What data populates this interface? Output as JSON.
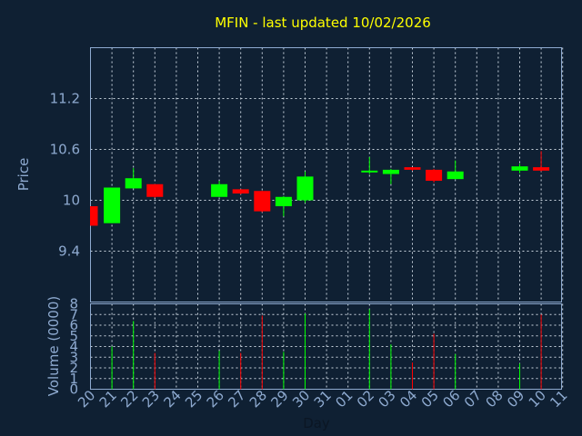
{
  "chart_data": {
    "type": "candlestick",
    "title": "MFIN - last updated 10/02/2026",
    "xlabel": "Day",
    "x_ticks": [
      "20",
      "21",
      "22",
      "23",
      "24",
      "25",
      "26",
      "27",
      "28",
      "29",
      "30",
      "31",
      "01",
      "02",
      "03",
      "04",
      "05",
      "06",
      "07",
      "08",
      "09",
      "10",
      "11"
    ],
    "price_panel": {
      "ylabel": "Price",
      "ylim": [
        8.8,
        11.8
      ],
      "y_ticks": [
        9.4,
        10,
        10.6,
        11.2
      ],
      "y_tick_labels": [
        "9.4",
        "10",
        "10.6",
        "11.2"
      ]
    },
    "volume_panel": {
      "ylabel": "Volume (0000)",
      "ylim": [
        0,
        8
      ],
      "y_ticks": [
        0,
        1,
        2,
        3,
        4,
        5,
        6,
        7,
        8
      ],
      "y_tick_labels": [
        "0",
        "1",
        "2",
        "3",
        "4",
        "5",
        "6",
        "7",
        "8"
      ]
    },
    "candles": [
      {
        "day": "20",
        "open": 9.93,
        "high": 9.93,
        "low": 9.7,
        "close": 9.7,
        "volume": 0
      },
      {
        "day": "21",
        "open": 9.73,
        "high": 10.15,
        "low": 9.73,
        "close": 10.15,
        "volume": 4.0
      },
      {
        "day": "22",
        "open": 10.14,
        "high": 10.38,
        "low": 10.14,
        "close": 10.26,
        "volume": 6.4
      },
      {
        "day": "23",
        "open": 10.19,
        "high": 10.19,
        "low": 10.03,
        "close": 10.04,
        "volume": 3.4
      },
      {
        "day": "26",
        "open": 10.04,
        "high": 10.23,
        "low": 10.04,
        "close": 10.19,
        "volume": 3.6
      },
      {
        "day": "27",
        "open": 10.13,
        "high": 10.13,
        "low": 10.07,
        "close": 10.08,
        "volume": 3.4
      },
      {
        "day": "28",
        "open": 10.11,
        "high": 10.11,
        "low": 9.86,
        "close": 9.87,
        "volume": 6.9
      },
      {
        "day": "29",
        "open": 9.93,
        "high": 10.05,
        "low": 9.81,
        "close": 10.04,
        "volume": 3.5
      },
      {
        "day": "30",
        "open": 10.0,
        "high": 10.34,
        "low": 9.97,
        "close": 10.28,
        "volume": 7.1
      },
      {
        "day": "02",
        "open": 10.34,
        "high": 10.51,
        "low": 10.31,
        "close": 10.35,
        "volume": 7.5
      },
      {
        "day": "03",
        "open": 10.31,
        "high": 10.37,
        "low": 10.19,
        "close": 10.36,
        "volume": 4.2
      },
      {
        "day": "04",
        "open": 10.39,
        "high": 10.39,
        "low": 10.35,
        "close": 10.36,
        "volume": 2.5
      },
      {
        "day": "05",
        "open": 10.36,
        "high": 10.37,
        "low": 10.21,
        "close": 10.23,
        "volume": 5.2
      },
      {
        "day": "06",
        "open": 10.25,
        "high": 10.47,
        "low": 10.25,
        "close": 10.34,
        "volume": 3.3
      },
      {
        "day": "09",
        "open": 10.35,
        "high": 10.43,
        "low": 10.32,
        "close": 10.4,
        "volume": 2.4
      },
      {
        "day": "10",
        "open": 10.39,
        "high": 10.58,
        "low": 10.34,
        "close": 10.35,
        "volume": 7.0
      }
    ],
    "colors": {
      "up": "#00ff00",
      "down": "#ff0000",
      "background": "#0f2033",
      "title": "#ffff00",
      "axis": "#8eaad0",
      "grid": "#c9d3de"
    },
    "grid": true
  }
}
